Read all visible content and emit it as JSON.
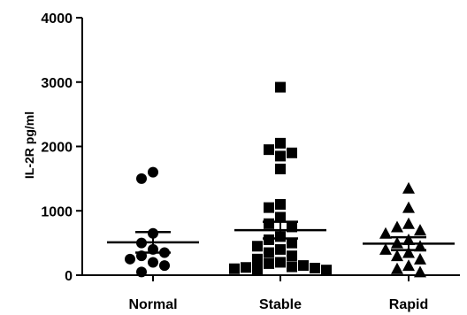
{
  "chart_data": {
    "type": "scatter",
    "title": "",
    "xlabel": "",
    "ylabel": "IL-2R pg/ml",
    "ylim": [
      0,
      4000
    ],
    "yticks": [
      0,
      1000,
      2000,
      3000,
      4000
    ],
    "ytick_labels": [
      "0",
      "1000",
      "2000",
      "3000",
      "4000"
    ],
    "grid": false,
    "categories": [
      "Normal",
      "Stable",
      "Rapid"
    ],
    "series": [
      {
        "category": "Normal",
        "marker": "circle",
        "values": [
          1600,
          1500,
          650,
          500,
          400,
          350,
          300,
          250,
          200,
          150,
          50
        ],
        "mean": 510,
        "sem_upper": 670,
        "sem_lower": 350
      },
      {
        "category": "Stable",
        "marker": "square",
        "values": [
          2920,
          2050,
          1950,
          1900,
          1850,
          1650,
          1100,
          1050,
          900,
          800,
          750,
          600,
          550,
          500,
          450,
          400,
          350,
          300,
          250,
          200,
          180,
          150,
          130,
          120,
          110,
          100,
          90,
          80
        ],
        "mean": 700,
        "sem_upper": 830,
        "sem_lower": 570
      },
      {
        "category": "Rapid",
        "marker": "triangle",
        "values": [
          1350,
          1050,
          800,
          750,
          700,
          650,
          550,
          500,
          450,
          400,
          350,
          300,
          250,
          150,
          100,
          50
        ],
        "mean": 490,
        "sem_upper": 590,
        "sem_lower": 390
      }
    ],
    "colors": {
      "marker": "#000000",
      "axis": "#000000",
      "background": "#ffffff"
    }
  }
}
